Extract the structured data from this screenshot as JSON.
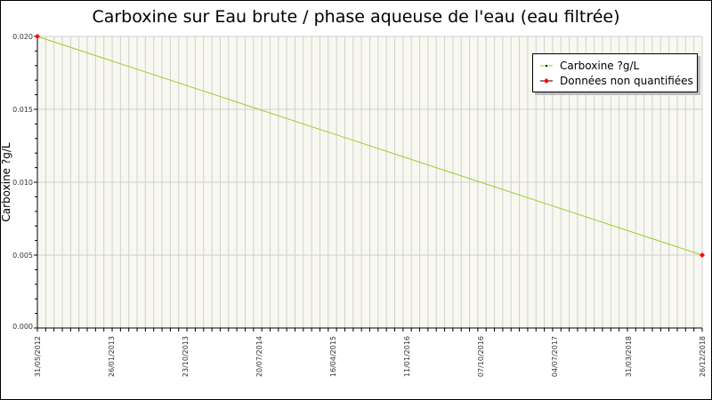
{
  "chart_data": {
    "type": "line",
    "title": "Carboxine sur Eau brute / phase aqueuse de l'eau (eau filtrée)",
    "xlabel": "",
    "ylabel": "Carboxine ?g/L",
    "xlim": [
      "31/05/2012",
      "26/12/2018"
    ],
    "ylim": [
      0,
      0.02
    ],
    "x_tick_labels": [
      "31/05/2012",
      "26/01/2013",
      "23/10/2013",
      "20/07/2014",
      "16/04/2015",
      "11/01/2016",
      "07/10/2016",
      "04/07/2017",
      "31/03/2018",
      "26/12/2018"
    ],
    "y_tick_labels": [
      "0.000",
      "0.005",
      "0.010",
      "0.015",
      "0.020"
    ],
    "y_ticks": [
      0,
      0.005,
      0.01,
      0.015,
      0.02
    ],
    "grid": true,
    "legend_position": "top-right",
    "series": [
      {
        "name": "Carboxine ?g/L",
        "color": "#9acd32",
        "points": [
          {
            "x": "31/05/2012",
            "y": 0.02
          },
          {
            "x": "26/12/2018",
            "y": 0.005
          }
        ]
      },
      {
        "name": "Données non quantifiées",
        "color": "#ff0000",
        "points": [
          {
            "x": "31/05/2012",
            "y": 0.02
          },
          {
            "x": "26/12/2018",
            "y": 0.005
          }
        ]
      }
    ],
    "background_color": "#f8f8f0"
  }
}
